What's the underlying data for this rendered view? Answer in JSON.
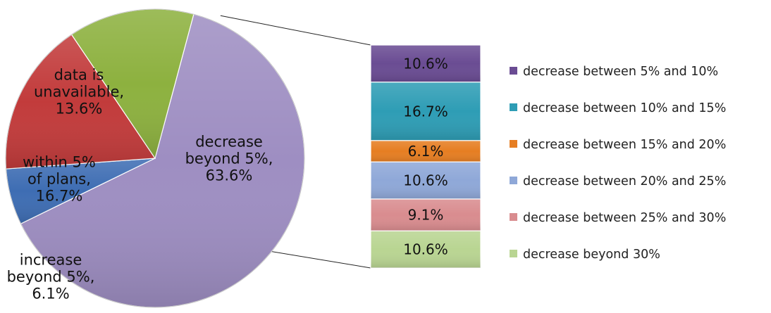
{
  "chart_data": [
    {
      "type": "pie",
      "title": "",
      "slices": [
        {
          "label_lines": [
            "decrease",
            "beyond 5%,",
            "63.6%"
          ],
          "category": "decrease beyond 5%",
          "value": 63.6,
          "color": "#9E8EC2"
        },
        {
          "label_lines": [
            "increase",
            "beyond 5%,",
            "6.1%"
          ],
          "category": "increase beyond 5%",
          "value": 6.1,
          "color": "#3E6DB3"
        },
        {
          "label_lines": [
            "within 5%",
            "of plans,",
            "16.7%"
          ],
          "category": "within 5% of plans",
          "value": 16.7,
          "color": "#C23B3B"
        },
        {
          "label_lines": [
            "data is",
            "unavailable,",
            "13.6%"
          ],
          "category": "data is unavailable",
          "value": 13.6,
          "color": "#8DB13F"
        }
      ]
    },
    {
      "type": "bar",
      "orientation": "stacked-vertical",
      "title": "",
      "categories": [
        "decrease between 5% and 10%",
        "decrease between 10% and 15%",
        "decrease between 15% and 20%",
        "decrease between 20% and 25%",
        "decrease between 25% and 30%",
        "decrease beyond 30%"
      ],
      "values": [
        10.6,
        16.7,
        6.1,
        10.6,
        9.1,
        10.6
      ],
      "labels": [
        "10.6%",
        "16.7%",
        "6.1%",
        "10.6%",
        "9.1%",
        "10.6%"
      ],
      "colors": [
        "#6A4C93",
        "#2E9DB5",
        "#E67E22",
        "#8FA8D8",
        "#D98C8F",
        "#B9D592"
      ],
      "legend": {
        "placement": "right"
      }
    }
  ]
}
